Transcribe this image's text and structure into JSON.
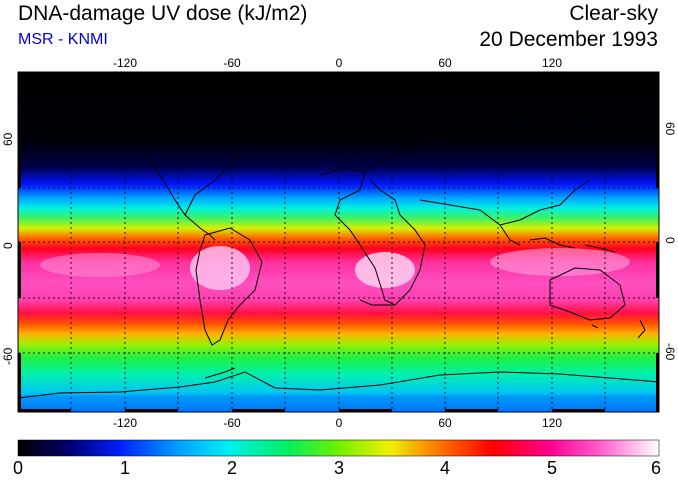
{
  "header": {
    "title": "DNA-damage UV dose (kJ/m2)",
    "source": "MSR - KNMI",
    "sky_condition": "Clear-sky",
    "date": "20 December 1993"
  },
  "map": {
    "longitude_ticks": [
      "-120",
      "-60",
      "0",
      "60",
      "120"
    ],
    "latitude_ticks": [
      "60",
      "0",
      "-60"
    ]
  },
  "colorbar": {
    "ticks": [
      "0",
      "1",
      "2",
      "3",
      "4",
      "5",
      "6"
    ],
    "min": 0,
    "max": 6
  },
  "colors": {
    "source_text": "#0000dd",
    "background": "#ffffff"
  }
}
